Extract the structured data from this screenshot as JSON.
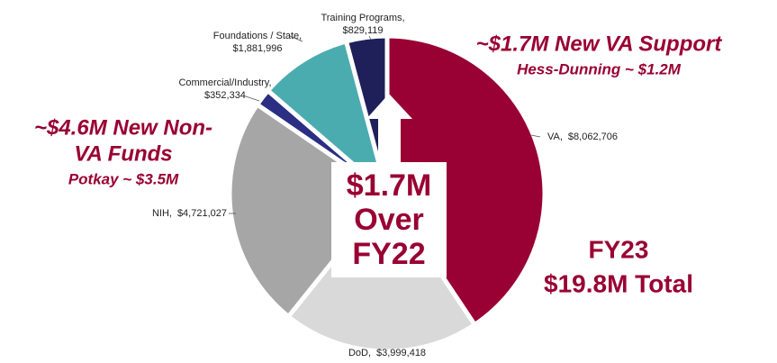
{
  "chart_data": {
    "type": "pie",
    "categories": [
      "VA,",
      "DoD,",
      "NIH,",
      "Commercial/Industry,",
      "Foundations / State,",
      "Training Programs,"
    ],
    "values": [
      8062706,
      3999418,
      4721027,
      352334,
      1881996,
      829119
    ],
    "value_labels": [
      "$8,062,706",
      "$3,999,418",
      "$4,721,027",
      "$352,334",
      "$1,881,996",
      "$829,119"
    ],
    "colors": [
      "#990033",
      "#d9d9d9",
      "#a6a6a6",
      "#2b2e83",
      "#4bacb0",
      "#1f1f5a"
    ],
    "center_text": [
      "$1.7M",
      "Over",
      "FY22"
    ],
    "annotations": [
      "~$1.7M New VA Support",
      "Hess-Dunning ~ $1.2M",
      "~$4.6M New Non-",
      "VA Funds",
      "Potkay ~ $3.5M",
      "FY23",
      "$19.8M Total"
    ]
  }
}
